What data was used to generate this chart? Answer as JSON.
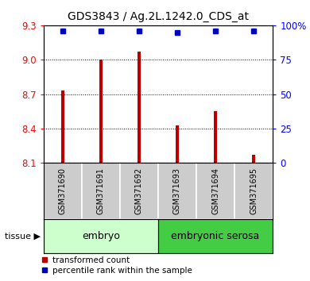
{
  "title": "GDS3843 / Ag.2L.1242.0_CDS_at",
  "samples": [
    "GSM371690",
    "GSM371691",
    "GSM371692",
    "GSM371693",
    "GSM371694",
    "GSM371695"
  ],
  "bar_values": [
    8.73,
    9.0,
    9.07,
    8.43,
    8.55,
    8.17
  ],
  "percentile_values": [
    9.25,
    9.25,
    9.25,
    9.24,
    9.25,
    9.25
  ],
  "ylim_left": [
    8.1,
    9.3
  ],
  "ylim_right": [
    0,
    100
  ],
  "yticks_left": [
    8.1,
    8.4,
    8.7,
    9.0,
    9.3
  ],
  "yticks_right": [
    0,
    25,
    50,
    75,
    100
  ],
  "ytick_labels_right": [
    "0",
    "25",
    "50",
    "75",
    "100%"
  ],
  "bar_color": "#bb0000",
  "dot_color": "#0000bb",
  "bar_width": 0.08,
  "tissue_labels": [
    "embryo",
    "embryonic serosa"
  ],
  "tissue_colors": [
    "#ccffcc",
    "#44cc44"
  ],
  "sample_box_color": "#cccccc",
  "legend_bar_label": "transformed count",
  "legend_dot_label": "percentile rank within the sample",
  "figsize": [
    3.9,
    3.54
  ],
  "dpi": 100
}
